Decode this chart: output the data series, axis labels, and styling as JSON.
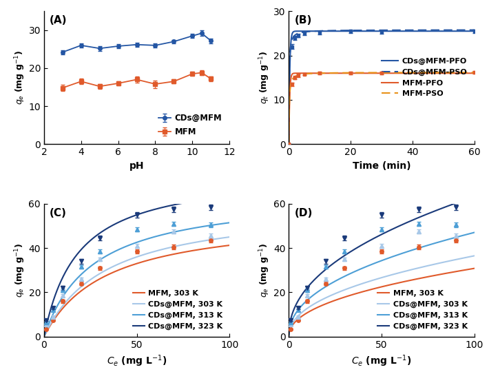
{
  "panel_A": {
    "label": "(A)",
    "xlabel": "pH",
    "ylabel": "$q_e$ (mg g$^{-1}$)",
    "xlim": [
      2,
      12
    ],
    "ylim": [
      0,
      35
    ],
    "xticks": [
      2,
      4,
      6,
      8,
      10,
      12
    ],
    "yticks": [
      0,
      10,
      20,
      30
    ],
    "CDs_MFM_x": [
      3,
      4,
      5,
      6,
      7,
      8,
      9,
      10,
      10.5,
      11
    ],
    "CDs_MFM_y": [
      24.2,
      26.0,
      25.2,
      25.8,
      26.2,
      26.0,
      27.0,
      28.5,
      29.2,
      27.2
    ],
    "CDs_MFM_yerr": [
      0.5,
      0.6,
      0.6,
      0.5,
      0.5,
      0.5,
      0.5,
      0.6,
      0.7,
      0.6
    ],
    "MFM_x": [
      3,
      4,
      5,
      6,
      7,
      8,
      9,
      10,
      10.5,
      11
    ],
    "MFM_y": [
      14.8,
      16.5,
      15.2,
      16.0,
      17.0,
      15.8,
      16.5,
      18.5,
      18.8,
      17.2
    ],
    "MFM_yerr": [
      0.8,
      0.7,
      0.6,
      0.6,
      0.8,
      1.0,
      0.5,
      0.6,
      0.7,
      0.6
    ],
    "color_CDs": "#2456a4",
    "color_MFM": "#e05a2b"
  },
  "panel_B": {
    "label": "(B)",
    "xlabel": "Time (min)",
    "ylabel": "$q_t$ (mg g$^{-1}$)",
    "xlim": [
      0,
      60
    ],
    "ylim": [
      0,
      30
    ],
    "xticks": [
      0,
      20,
      40,
      60
    ],
    "yticks": [
      0,
      10,
      20,
      30
    ],
    "data_CDs_x": [
      0,
      1,
      2,
      3,
      5,
      10,
      20,
      30,
      60
    ],
    "data_CDs_y": [
      0,
      22.0,
      24.0,
      24.5,
      25.0,
      25.2,
      25.5,
      25.3,
      25.5
    ],
    "data_CDs_yerr": [
      0,
      0.5,
      0.5,
      0.4,
      0.4,
      0.4,
      0.4,
      0.4,
      0.4
    ],
    "data_MFM_x": [
      0,
      1,
      2,
      3,
      5,
      10,
      20,
      30,
      60
    ],
    "data_MFM_y": [
      0,
      13.5,
      15.0,
      15.5,
      15.8,
      16.0,
      16.0,
      16.1,
      16.2
    ],
    "data_MFM_yerr": [
      0,
      0.4,
      0.4,
      0.4,
      0.3,
      0.3,
      0.3,
      0.3,
      0.3
    ],
    "PFO_qe_CDs": 25.5,
    "PFO_k1_CDs": 3.5,
    "PSO_qe_CDs": 25.8,
    "PSO_k2_CDs": 0.4,
    "PFO_qe_MFM": 16.0,
    "PFO_k1_MFM": 4.0,
    "PSO_qe_MFM": 16.2,
    "PSO_k2_MFM": 0.5,
    "color_CDs": "#2456a4",
    "color_MFM": "#e05a2b",
    "color_PSO_MFM": "#e8921a"
  },
  "panel_C": {
    "label": "(C)",
    "xlabel": "$C_e$ (mg L$^{-1}$)",
    "ylabel": "$q_e$ (mg g$^{-1}$)",
    "xlim": [
      0,
      100
    ],
    "ylim": [
      0,
      60
    ],
    "xticks": [
      0,
      50,
      100
    ],
    "yticks": [
      0,
      20,
      40,
      60
    ],
    "MFM_303_x": [
      1,
      5,
      10,
      20,
      30,
      50,
      70,
      90
    ],
    "MFM_303_y": [
      3.2,
      7.5,
      16.0,
      24.0,
      31.0,
      38.5,
      40.5,
      43.5
    ],
    "MFM_303_yerr": [
      0.3,
      0.5,
      0.7,
      0.8,
      0.8,
      0.9,
      1.0,
      1.0
    ],
    "CDs303_x": [
      1,
      5,
      10,
      20,
      30,
      50,
      70,
      90
    ],
    "CDs303_y": [
      5.5,
      9.0,
      18.5,
      26.0,
      35.0,
      41.0,
      47.5,
      45.5
    ],
    "CDs303_yerr": [
      0.3,
      0.5,
      0.7,
      0.8,
      0.8,
      1.0,
      1.0,
      1.0
    ],
    "CDs313_x": [
      1,
      5,
      10,
      20,
      30,
      50,
      70,
      90
    ],
    "CDs313_y": [
      6.5,
      12.0,
      21.0,
      31.5,
      38.5,
      48.5,
      51.0,
      50.5
    ],
    "CDs313_yerr": [
      0.3,
      0.6,
      0.8,
      0.9,
      0.9,
      1.0,
      1.0,
      1.0
    ],
    "CDs323_x": [
      1,
      5,
      10,
      20,
      30,
      50,
      70,
      90
    ],
    "CDs323_y": [
      7.5,
      13.0,
      22.0,
      34.0,
      44.5,
      55.0,
      57.5,
      58.5
    ],
    "CDs323_yerr": [
      0.4,
      0.6,
      0.9,
      1.0,
      1.0,
      1.2,
      1.2,
      1.2
    ],
    "Langmuir_MFM_303": {
      "qmax": 55.0,
      "KL": 0.03
    },
    "Langmuir_CDs303": {
      "qmax": 60.0,
      "KL": 0.03
    },
    "Langmuir_CDs313": {
      "qmax": 65.0,
      "KL": 0.038
    },
    "Langmuir_CDs323": {
      "qmax": 75.0,
      "KL": 0.055
    },
    "color_MFM_303": "#e05a2b",
    "color_CDs_303": "#a8c8e8",
    "color_CDs_313": "#4d9fd6",
    "color_CDs_323": "#1a3a7a"
  },
  "panel_D": {
    "label": "(D)",
    "xlabel": "$C_e$ (mg L$^{-1}$)",
    "ylabel": "$q_e$ (mg g$^{-1}$)",
    "xlim": [
      0,
      100
    ],
    "ylim": [
      0,
      60
    ],
    "xticks": [
      0,
      50,
      100
    ],
    "yticks": [
      0,
      20,
      40,
      60
    ],
    "MFM_303_x": [
      1,
      5,
      10,
      20,
      30,
      50,
      70,
      90
    ],
    "MFM_303_y": [
      3.2,
      7.5,
      16.0,
      24.0,
      31.0,
      38.5,
      40.5,
      43.5
    ],
    "MFM_303_yerr": [
      0.3,
      0.5,
      0.7,
      0.8,
      0.8,
      0.9,
      1.0,
      1.0
    ],
    "CDs303_x": [
      1,
      5,
      10,
      20,
      30,
      50,
      70,
      90
    ],
    "CDs303_y": [
      5.5,
      9.0,
      18.5,
      26.0,
      35.0,
      41.0,
      47.5,
      45.5
    ],
    "CDs303_yerr": [
      0.3,
      0.5,
      0.7,
      0.8,
      0.8,
      1.0,
      1.0,
      1.0
    ],
    "CDs313_x": [
      1,
      5,
      10,
      20,
      30,
      50,
      70,
      90
    ],
    "CDs313_y": [
      6.5,
      12.0,
      21.0,
      31.5,
      38.5,
      48.5,
      51.0,
      50.5
    ],
    "CDs313_yerr": [
      0.3,
      0.6,
      0.8,
      0.9,
      0.9,
      1.0,
      1.0,
      1.0
    ],
    "CDs323_x": [
      1,
      5,
      10,
      20,
      30,
      50,
      70,
      90
    ],
    "CDs323_y": [
      7.5,
      13.0,
      22.0,
      34.0,
      44.5,
      55.0,
      57.5,
      58.5
    ],
    "CDs323_yerr": [
      0.4,
      0.6,
      0.9,
      1.0,
      1.0,
      1.2,
      1.2,
      1.2
    ],
    "Freundlich_MFM_303": {
      "KF": 3.8,
      "n": 2.2
    },
    "Freundlich_CDs303": {
      "KF": 4.5,
      "n": 2.2
    },
    "Freundlich_CDs313": {
      "KF": 5.8,
      "n": 2.2
    },
    "Freundlich_CDs323": {
      "KF": 7.8,
      "n": 2.2
    },
    "color_MFM_303": "#e05a2b",
    "color_CDs_303": "#a8c8e8",
    "color_CDs_313": "#4d9fd6",
    "color_CDs_323": "#1a3a7a"
  }
}
